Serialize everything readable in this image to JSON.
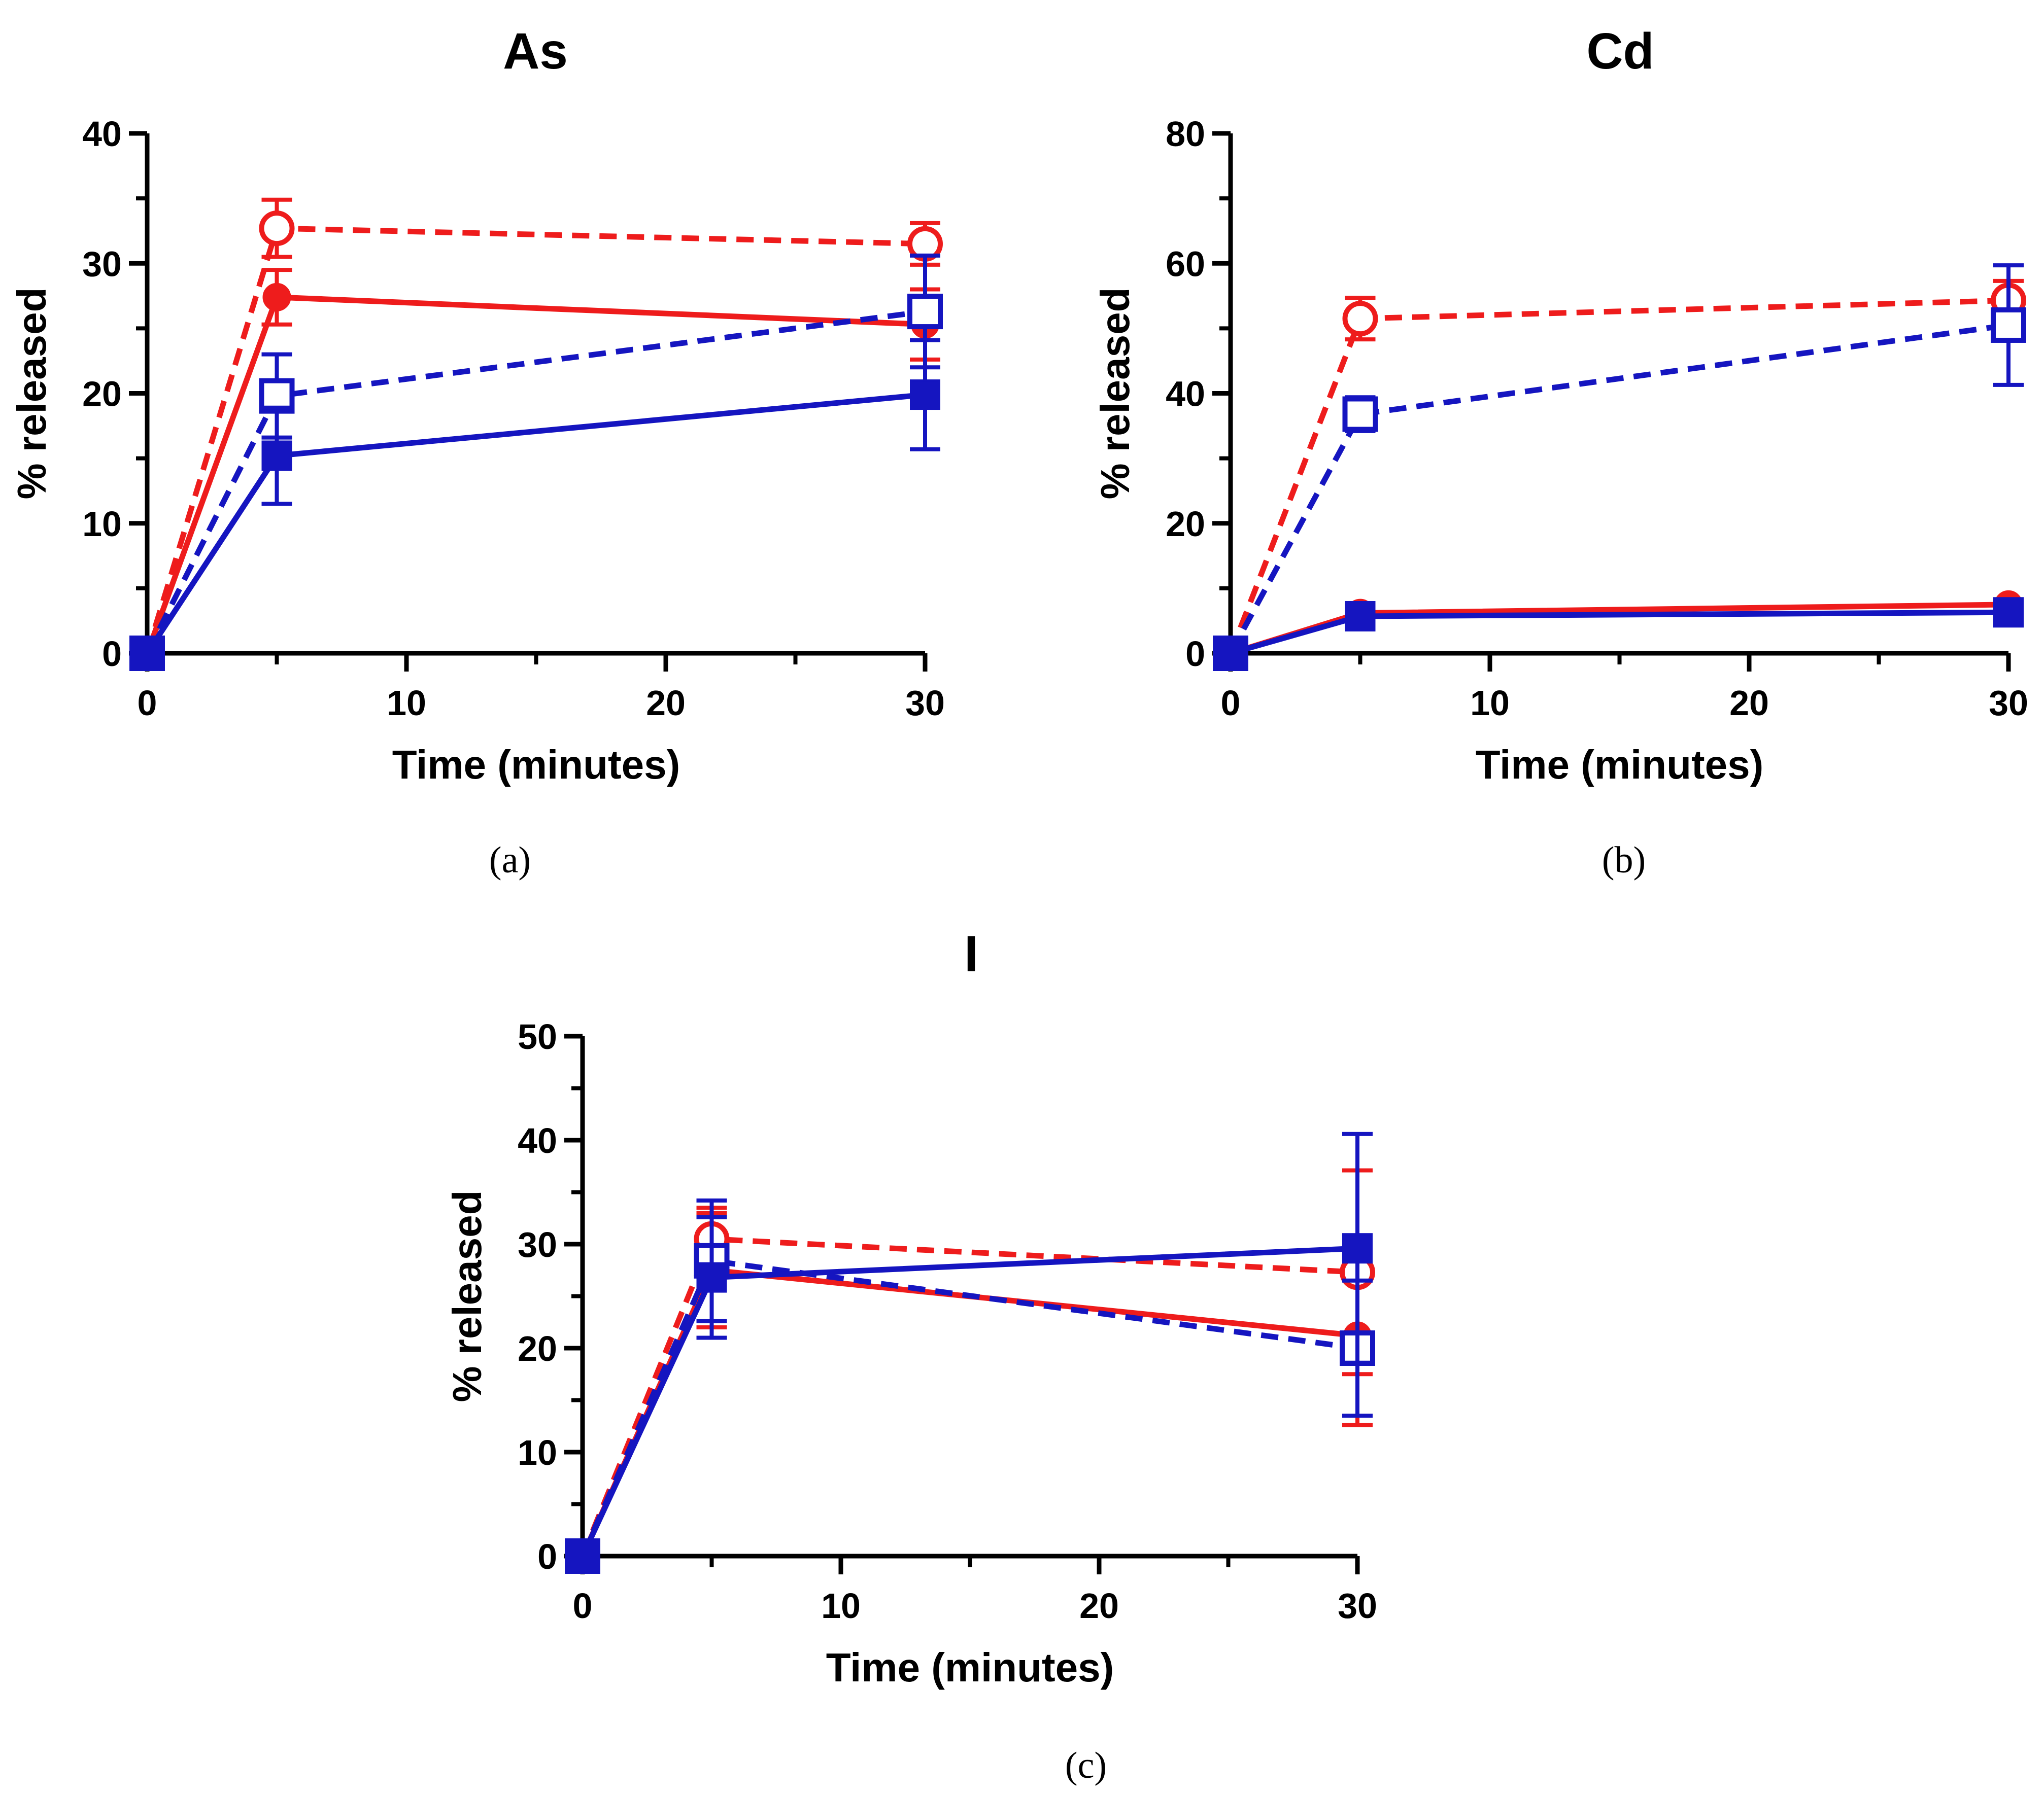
{
  "colors": {
    "red": "#ee1c1c",
    "blue": "#1515c0",
    "axis": "#000000"
  },
  "chart_data": [
    {
      "type": "line",
      "panel": "a",
      "caption": "(a)",
      "title": "As",
      "xlabel": "Time (minutes)",
      "ylabel": "% released",
      "xlim": [
        0,
        30
      ],
      "ylim": [
        0,
        40
      ],
      "xticks": [
        0,
        10,
        20,
        30
      ],
      "yticks": [
        0,
        10,
        20,
        30,
        40
      ],
      "series": [
        {
          "name": "red dashed open circle",
          "color": "red",
          "dashed": true,
          "marker": "circle",
          "filled": false,
          "x": [
            0,
            5,
            30
          ],
          "y": [
            0,
            32.7,
            31.5
          ],
          "err": [
            0,
            2.2,
            1.6
          ]
        },
        {
          "name": "red solid filled circle",
          "color": "red",
          "dashed": false,
          "marker": "circle",
          "filled": true,
          "x": [
            0,
            5,
            30
          ],
          "y": [
            0,
            27.4,
            25.3
          ],
          "err": [
            0,
            2.1,
            2.7
          ]
        },
        {
          "name": "blue dashed open square",
          "color": "blue",
          "dashed": true,
          "marker": "square",
          "filled": false,
          "x": [
            0,
            5,
            30
          ],
          "y": [
            0,
            19.8,
            26.3
          ],
          "err": [
            0,
            3.2,
            4.3
          ]
        },
        {
          "name": "blue solid filled square",
          "color": "blue",
          "dashed": false,
          "marker": "square",
          "filled": true,
          "x": [
            0,
            5,
            30
          ],
          "y": [
            0,
            15.2,
            19.9
          ],
          "err": [
            0,
            3.7,
            4.2
          ]
        }
      ]
    },
    {
      "type": "line",
      "panel": "b",
      "caption": "(b)",
      "title": "Cd",
      "xlabel": "Time (minutes)",
      "ylabel": "% released",
      "xlim": [
        0,
        30
      ],
      "ylim": [
        0,
        80
      ],
      "xticks": [
        0,
        10,
        20,
        30
      ],
      "yticks": [
        0,
        20,
        40,
        60,
        80
      ],
      "series": [
        {
          "name": "red dashed open circle",
          "color": "red",
          "dashed": true,
          "marker": "circle",
          "filled": false,
          "x": [
            0,
            5,
            30
          ],
          "y": [
            0,
            51.5,
            54.3
          ],
          "err": [
            0,
            3.2,
            3.0
          ]
        },
        {
          "name": "red solid filled circle",
          "color": "red",
          "dashed": false,
          "marker": "circle",
          "filled": true,
          "x": [
            0,
            5,
            30
          ],
          "y": [
            0,
            6.2,
            7.5
          ],
          "err": [
            0,
            0.4,
            0.4
          ]
        },
        {
          "name": "blue dashed open square",
          "color": "blue",
          "dashed": true,
          "marker": "square",
          "filled": false,
          "x": [
            0,
            5,
            30
          ],
          "y": [
            0,
            36.8,
            50.5
          ],
          "err": [
            0,
            2.6,
            9.2
          ]
        },
        {
          "name": "blue solid filled square",
          "color": "blue",
          "dashed": false,
          "marker": "square",
          "filled": true,
          "x": [
            0,
            5,
            30
          ],
          "y": [
            0,
            5.7,
            6.3
          ],
          "err": [
            0,
            0.4,
            0.4
          ]
        }
      ]
    },
    {
      "type": "line",
      "panel": "c",
      "caption": "(c)",
      "title": "I",
      "xlabel": "Time (minutes)",
      "ylabel": "% released",
      "xlim": [
        0,
        30
      ],
      "ylim": [
        0,
        50
      ],
      "xticks": [
        0,
        10,
        20,
        30
      ],
      "yticks": [
        0,
        10,
        20,
        30,
        40,
        50
      ],
      "series": [
        {
          "name": "red dashed open circle",
          "color": "red",
          "dashed": true,
          "marker": "circle",
          "filled": false,
          "x": [
            0,
            5,
            30
          ],
          "y": [
            0,
            30.5,
            27.3
          ],
          "err": [
            0,
            3.0,
            9.8
          ]
        },
        {
          "name": "red solid filled circle",
          "color": "red",
          "dashed": false,
          "marker": "circle",
          "filled": true,
          "x": [
            0,
            5,
            30
          ],
          "y": [
            0,
            27.5,
            21.2
          ],
          "err": [
            0,
            5.5,
            8.6
          ]
        },
        {
          "name": "blue dashed open square",
          "color": "blue",
          "dashed": true,
          "marker": "square",
          "filled": false,
          "x": [
            0,
            5,
            30
          ],
          "y": [
            0,
            28.4,
            20.0
          ],
          "err": [
            0,
            5.8,
            6.5
          ]
        },
        {
          "name": "blue solid filled square",
          "color": "blue",
          "dashed": false,
          "marker": "square",
          "filled": true,
          "x": [
            0,
            5,
            30
          ],
          "y": [
            0,
            26.8,
            29.6
          ],
          "err": [
            0,
            5.8,
            11.0
          ]
        }
      ]
    }
  ]
}
